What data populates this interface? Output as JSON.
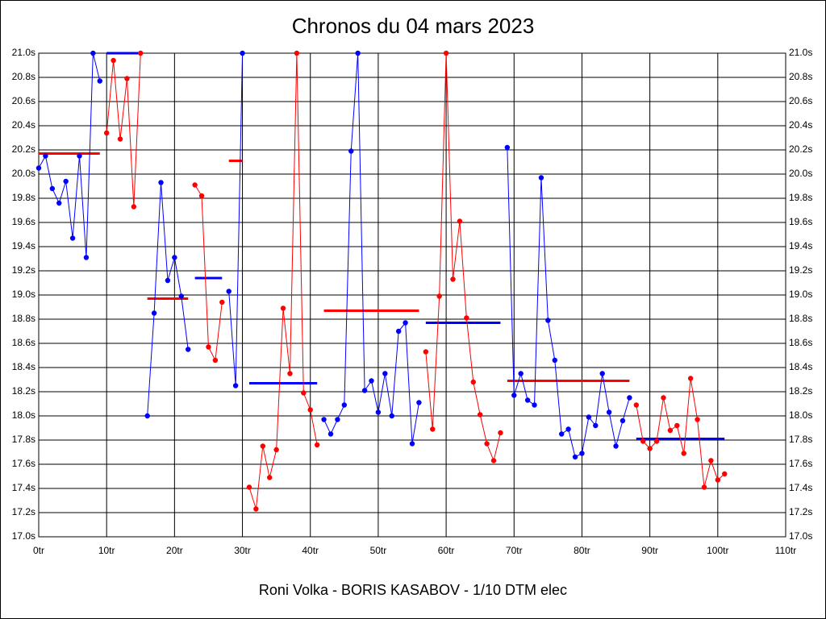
{
  "chart_data": {
    "type": "line",
    "title": "Chronos du 04 mars 2023",
    "x_label": "Roni Volka - BORIS KASABOV - 1/10 DTM elec",
    "xlim": [
      0,
      110
    ],
    "xticks": [
      {
        "value": 0,
        "label": "0tr"
      },
      {
        "value": 10,
        "label": "10tr"
      },
      {
        "value": 20,
        "label": "20tr"
      },
      {
        "value": 30,
        "label": "30tr"
      },
      {
        "value": 40,
        "label": "40tr"
      },
      {
        "value": 50,
        "label": "50tr"
      },
      {
        "value": 60,
        "label": "60tr"
      },
      {
        "value": 70,
        "label": "70tr"
      },
      {
        "value": 80,
        "label": "80tr"
      },
      {
        "value": 90,
        "label": "90tr"
      },
      {
        "value": 100,
        "label": "100tr"
      },
      {
        "value": 110,
        "label": "110tr"
      }
    ],
    "ylim": [
      17.0,
      21.0
    ],
    "yticks": [
      {
        "value": 17.0,
        "label": "17.0s"
      },
      {
        "value": 17.2,
        "label": "17.2s"
      },
      {
        "value": 17.4,
        "label": "17.4s"
      },
      {
        "value": 17.6,
        "label": "17.6s"
      },
      {
        "value": 17.8,
        "label": "17.8s"
      },
      {
        "value": 18.0,
        "label": "18.0s"
      },
      {
        "value": 18.2,
        "label": "18.2s"
      },
      {
        "value": 18.4,
        "label": "18.4s"
      },
      {
        "value": 18.6,
        "label": "18.6s"
      },
      {
        "value": 18.8,
        "label": "18.8s"
      },
      {
        "value": 19.0,
        "label": "19.0s"
      },
      {
        "value": 19.2,
        "label": "19.2s"
      },
      {
        "value": 19.4,
        "label": "19.4s"
      },
      {
        "value": 19.6,
        "label": "19.6s"
      },
      {
        "value": 19.8,
        "label": "19.8s"
      },
      {
        "value": 20.0,
        "label": "20.0s"
      },
      {
        "value": 20.2,
        "label": "20.2s"
      },
      {
        "value": 20.4,
        "label": "20.4s"
      },
      {
        "value": 20.6,
        "label": "20.6s"
      },
      {
        "value": 20.8,
        "label": "20.8s"
      },
      {
        "value": 21.0,
        "label": "21.0s"
      }
    ],
    "grid": true,
    "series": [
      {
        "color": "#0000ff",
        "x": [
          0,
          1,
          2,
          3,
          4,
          5,
          6,
          7,
          8,
          9
        ],
        "values": [
          20.05,
          20.15,
          19.88,
          19.76,
          19.94,
          19.47,
          20.15,
          19.31,
          21.0,
          20.77
        ]
      },
      {
        "color": "#ff0000",
        "x": [
          10,
          11,
          12,
          13,
          14,
          15
        ],
        "values": [
          20.34,
          20.94,
          20.29,
          20.79,
          19.73,
          21.0
        ]
      },
      {
        "color": "#0000ff",
        "x": [
          16,
          17,
          18,
          19,
          20,
          21,
          22
        ],
        "values": [
          18.0,
          18.85,
          19.93,
          19.12,
          19.31,
          18.99,
          18.55
        ]
      },
      {
        "color": "#ff0000",
        "x": [
          23,
          24,
          25,
          26,
          27
        ],
        "values": [
          19.91,
          19.82,
          18.57,
          18.46,
          18.94
        ]
      },
      {
        "color": "#0000ff",
        "x": [
          28,
          29,
          30
        ],
        "values": [
          19.03,
          18.25,
          21.0
        ]
      },
      {
        "color": "#ff0000",
        "x": [
          31,
          32,
          33,
          34,
          35,
          36,
          37,
          38,
          39,
          40,
          41
        ],
        "values": [
          17.41,
          17.23,
          17.75,
          17.49,
          17.72,
          18.89,
          18.35,
          21.0,
          18.19,
          18.05,
          17.76
        ]
      },
      {
        "color": "#0000ff",
        "x": [
          42,
          43,
          44,
          45,
          46,
          47,
          48,
          49,
          50,
          51,
          52,
          53,
          54,
          55,
          56
        ],
        "values": [
          17.97,
          17.85,
          17.97,
          18.09,
          20.19,
          21.0,
          18.21,
          18.29,
          18.03,
          18.35,
          18.0,
          18.7,
          18.77,
          17.77,
          18.11
        ]
      },
      {
        "color": "#ff0000",
        "x": [
          57,
          58,
          59,
          60,
          61,
          62,
          63,
          64,
          65,
          66,
          67,
          68
        ],
        "values": [
          18.53,
          17.89,
          18.99,
          21.0,
          19.13,
          19.61,
          18.81,
          18.28,
          18.01,
          17.77,
          17.63,
          17.86
        ]
      },
      {
        "color": "#0000ff",
        "x": [
          69,
          70,
          71,
          72,
          73,
          74,
          75,
          76,
          77,
          78,
          79,
          80,
          81,
          82,
          83,
          84,
          85,
          86,
          87
        ],
        "values": [
          20.22,
          18.17,
          18.35,
          18.13,
          18.09,
          19.97,
          18.79,
          18.46,
          17.85,
          17.89,
          17.66,
          17.69,
          17.99,
          17.92,
          18.35,
          18.03,
          17.75,
          17.96,
          18.15
        ]
      },
      {
        "color": "#ff0000",
        "x": [
          88,
          89,
          90,
          91,
          92,
          93,
          94,
          95,
          96,
          97,
          98,
          99,
          100,
          101
        ],
        "values": [
          18.09,
          17.79,
          17.73,
          17.79,
          18.15,
          17.88,
          17.92,
          17.69,
          18.31,
          17.97,
          17.41,
          17.63,
          17.47,
          17.52
        ]
      }
    ],
    "averages": [
      {
        "color": "#ff0000",
        "x": [
          0,
          9
        ],
        "value": 20.17
      },
      {
        "color": "#0000ff",
        "x": [
          10,
          15
        ],
        "value": 21.0
      },
      {
        "color": "#ff0000",
        "x": [
          16,
          22
        ],
        "value": 18.97
      },
      {
        "color": "#0000ff",
        "x": [
          23,
          27
        ],
        "value": 19.14
      },
      {
        "color": "#ff0000",
        "x": [
          28,
          30
        ],
        "value": 20.11
      },
      {
        "color": "#0000ff",
        "x": [
          31,
          41
        ],
        "value": 18.27
      },
      {
        "color": "#ff0000",
        "x": [
          42,
          56
        ],
        "value": 18.87
      },
      {
        "color": "#0000ff",
        "x": [
          57,
          68
        ],
        "value": 18.77
      },
      {
        "color": "#ff0000",
        "x": [
          69,
          87
        ],
        "value": 18.29
      },
      {
        "color": "#0000ff",
        "x": [
          88,
          101
        ],
        "value": 17.81
      }
    ]
  }
}
